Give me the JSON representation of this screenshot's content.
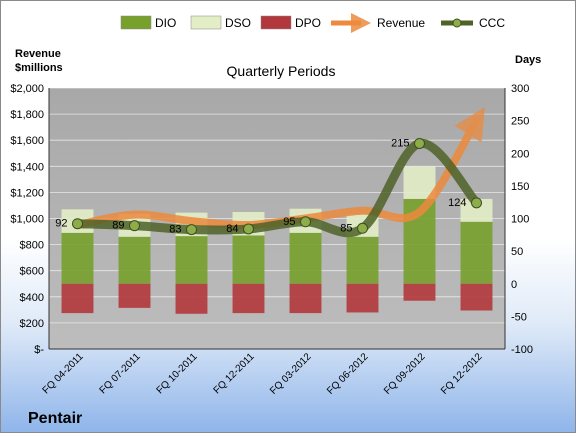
{
  "chart_data": {
    "type": "bar",
    "title": "Quarterly Periods",
    "company": "Pentair",
    "categories": [
      "FQ 04-2011",
      "FQ 07-2011",
      "FQ 10-2011",
      "FQ 12-2011",
      "FQ 03-2012",
      "FQ 06-2012",
      "FQ 09-2012",
      "FQ 12-2012"
    ],
    "left_axis": {
      "label_line1": "Revenue",
      "label_line2": "$millions",
      "ylim": [
        0,
        2000
      ],
      "ticks": [
        0,
        200,
        400,
        600,
        800,
        1000,
        1200,
        1400,
        1600,
        1800,
        2000
      ],
      "tick_labels": [
        "$-",
        "$200",
        "$400",
        "$600",
        "$800",
        "$1,000",
        "$1,200",
        "$1,400",
        "$1,600",
        "$1,800",
        "$2,000"
      ]
    },
    "right_axis": {
      "label": "Days",
      "ylim": [
        -100,
        300
      ],
      "ticks": [
        -100,
        -50,
        0,
        50,
        100,
        150,
        200,
        250,
        300
      ],
      "tick_labels": [
        "-100",
        "-50",
        "0",
        "50",
        "100",
        "150",
        "200",
        "250",
        "300"
      ]
    },
    "series": [
      {
        "name": "DIO",
        "axis": "right",
        "color": "#77a02c",
        "values": [
          78,
          72,
          73,
          74,
          78,
          72,
          130,
          95
        ]
      },
      {
        "name": "DSO",
        "axis": "right",
        "color": "#e3edc6",
        "values": [
          36,
          35,
          36,
          36,
          37,
          34,
          50,
          35
        ]
      },
      {
        "name": "DPO",
        "axis": "right",
        "color": "#b3383d",
        "values": [
          -45,
          -37,
          -46,
          -45,
          -45,
          -44,
          -26,
          -41
        ]
      },
      {
        "name": "Revenue",
        "axis": "left",
        "color": "#ec8a3d",
        "values": [
          950,
          1030,
          980,
          950,
          1000,
          1060,
          1050,
          1750
        ]
      },
      {
        "name": "CCC",
        "axis": "right",
        "color": "#4f6228",
        "values": [
          92,
          89,
          83,
          84,
          95,
          85,
          215,
          124
        ]
      }
    ],
    "ccc_labels": [
      "92",
      "89",
      "83",
      "84",
      "95",
      "85",
      "215",
      "124"
    ],
    "legend_position": "top",
    "grid": true
  }
}
